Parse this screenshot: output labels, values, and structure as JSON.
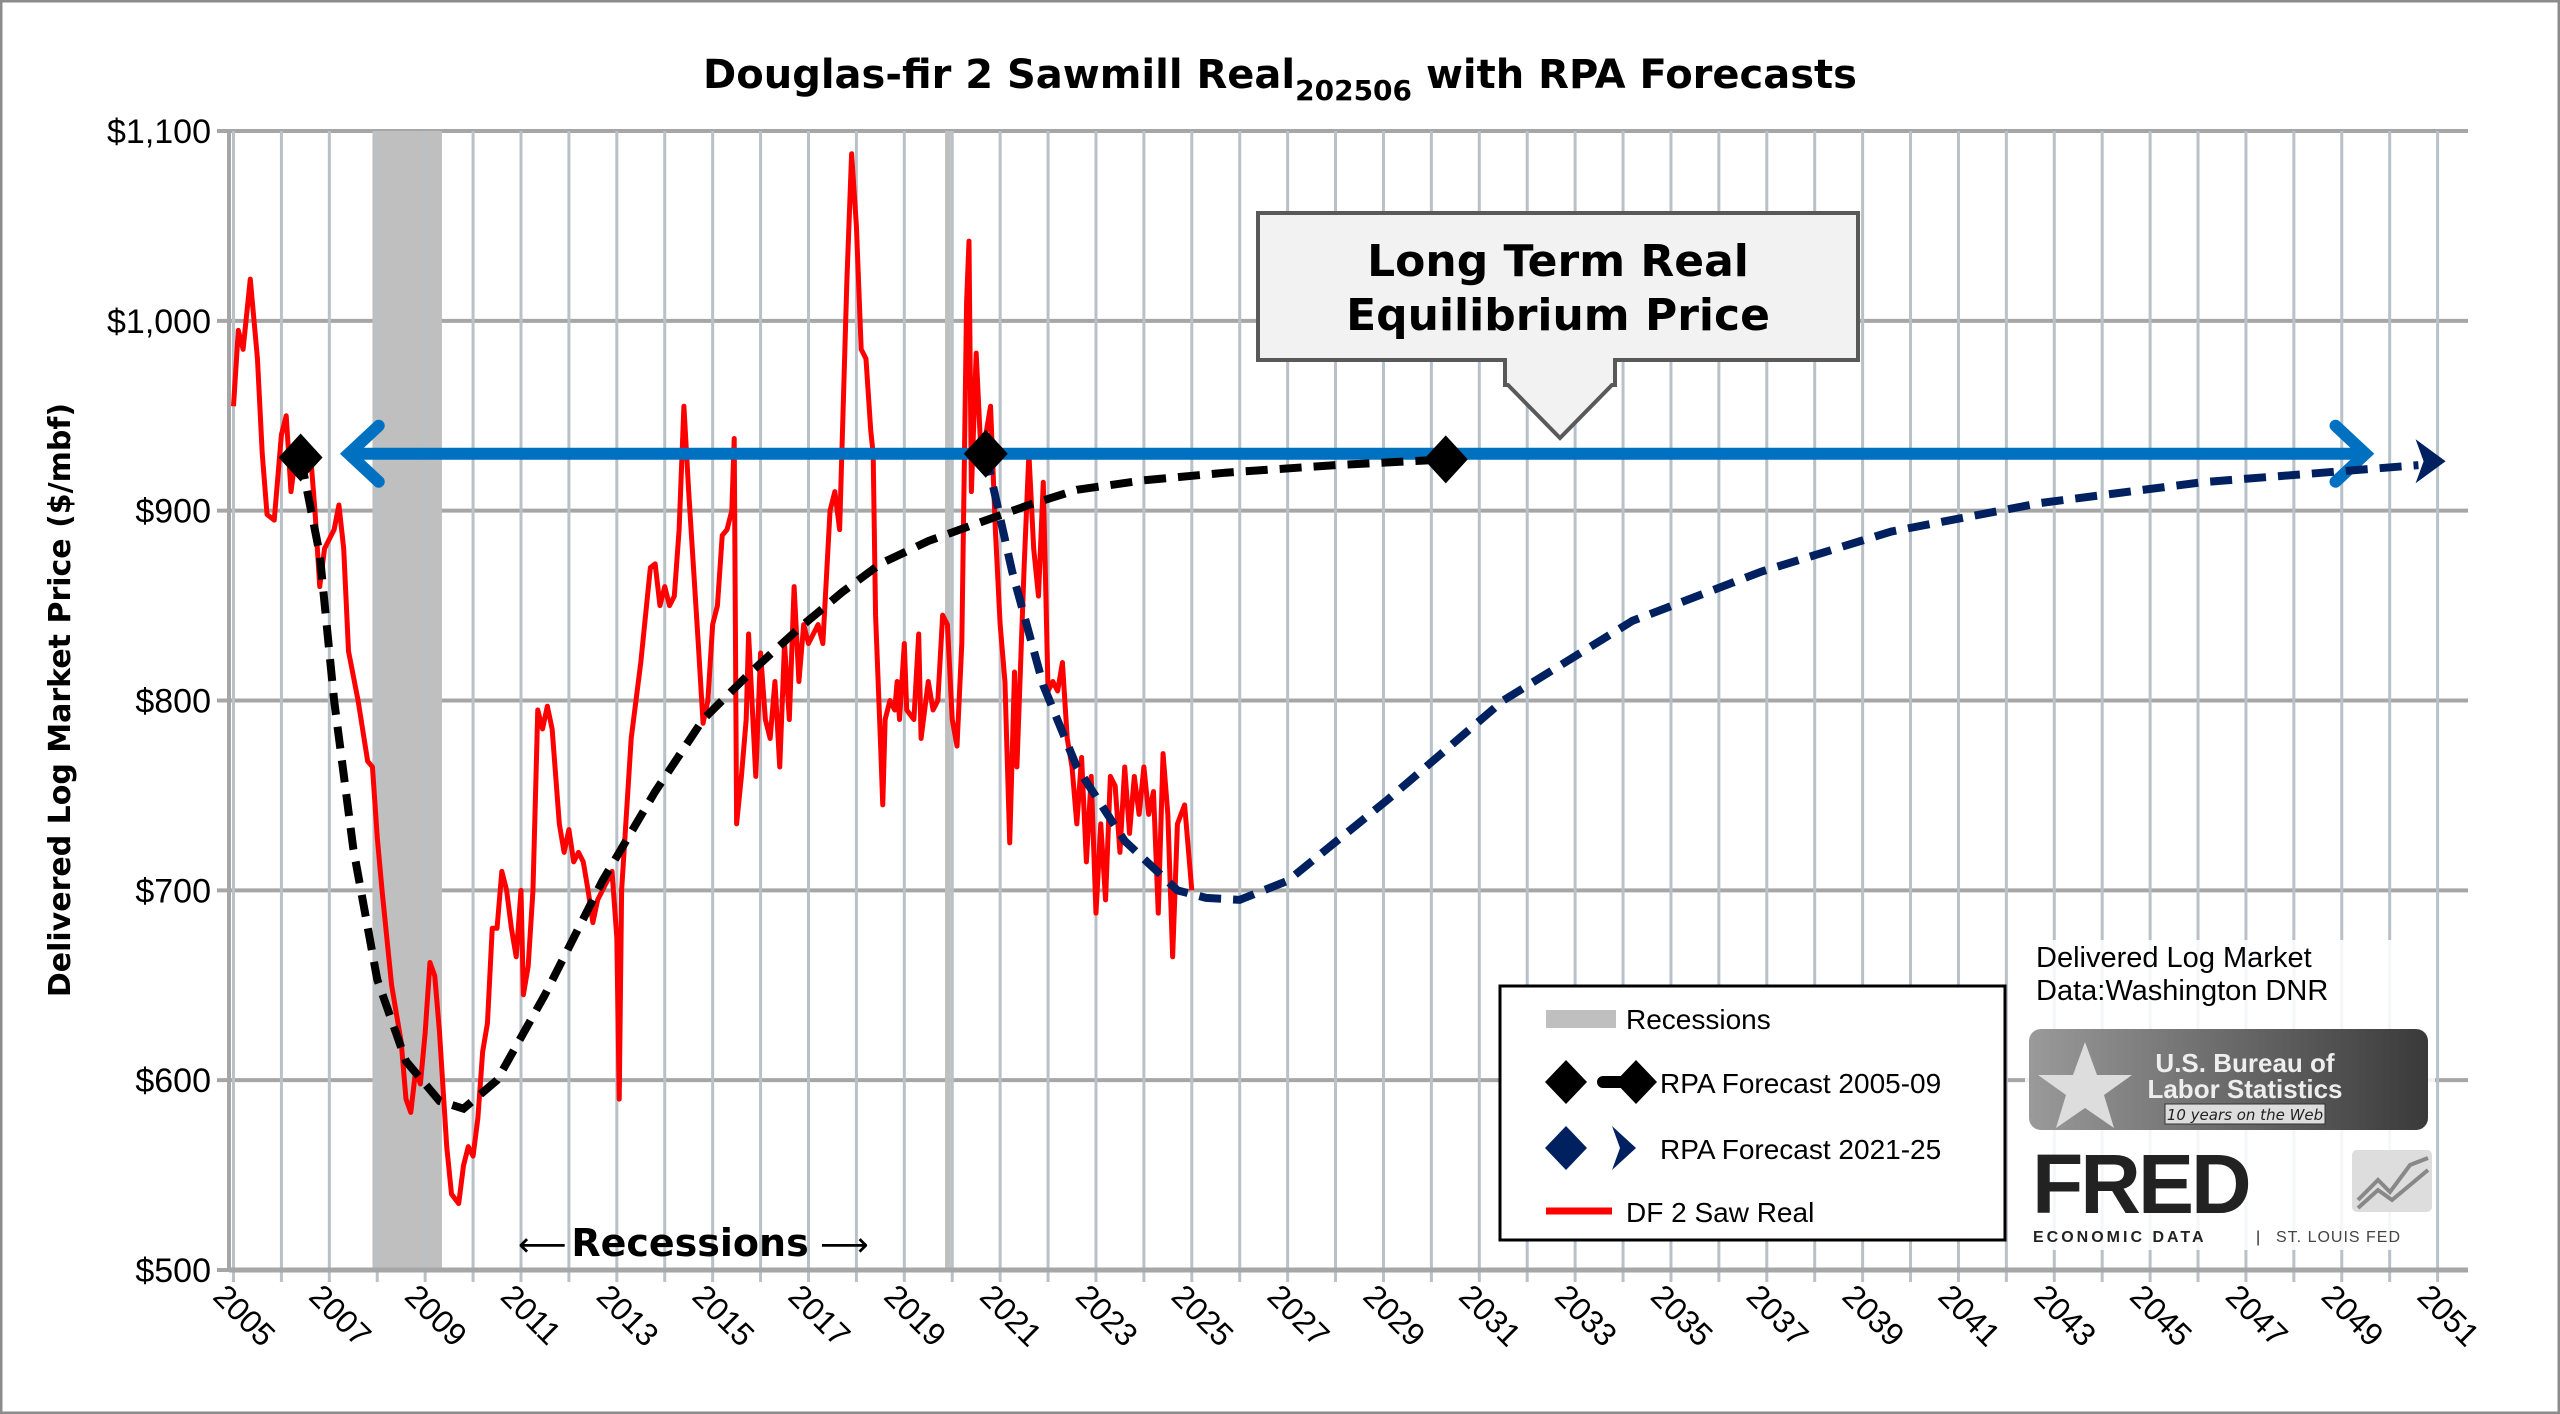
{
  "chart_data": {
    "type": "line",
    "title": "Douglas-fir 2 Sawmill Real",
    "title_subscript": "202506",
    "title_suffix": "with RPA Forecasts",
    "ylabel": "Delivered Log Market Price ($/mbf)",
    "xlabel": "",
    "ylim": [
      500,
      1100
    ],
    "xlim": [
      2005,
      2051
    ],
    "y_ticks": [
      500,
      600,
      700,
      800,
      900,
      1000,
      1100
    ],
    "y_tick_labels": [
      "$500",
      "$600",
      "$700",
      "$800",
      "$900",
      "$1,000",
      "$1,100"
    ],
    "x_tick_labels": [
      "2005",
      "2007",
      "2009",
      "2011",
      "2013",
      "2015",
      "2017",
      "2019",
      "2021",
      "2023",
      "2025",
      "2027",
      "2029",
      "2031",
      "2033",
      "2035",
      "2037",
      "2039",
      "2041",
      "2043",
      "2045",
      "2047",
      "2049",
      "2051"
    ],
    "grid": true,
    "legend_placement": "bottom-right",
    "recessions": [
      [
        2007.9,
        2009.35
      ],
      [
        2019.85,
        2019.97
      ]
    ],
    "recessions_annotation": "Recessions",
    "equilibrium": {
      "value": 930,
      "x_from": 2007.3,
      "x_to": 2049.6,
      "color": "#0070C0"
    },
    "callout": {
      "line1": "Long Term Real",
      "line2": "Equilibrium Price"
    },
    "series": [
      {
        "name": "DF 2 Saw Real",
        "color": "#FF0000",
        "style": "solid",
        "x": [
          2005.0,
          2005.1,
          2005.2,
          2005.35,
          2005.5,
          2005.6,
          2005.7,
          2005.85,
          2006.0,
          2006.1,
          2006.2,
          2006.3,
          2006.4,
          2006.5,
          2006.6,
          2006.7,
          2006.8,
          2006.9,
          2007.1,
          2007.2,
          2007.3,
          2007.4,
          2007.6,
          2007.8,
          2007.9,
          2008.0,
          2008.1,
          2008.3,
          2008.5,
          2008.6,
          2008.7,
          2008.8,
          2008.9,
          2009.0,
          2009.1,
          2009.2,
          2009.3,
          2009.45,
          2009.55,
          2009.7,
          2009.8,
          2009.9,
          2010.0,
          2010.1,
          2010.2,
          2010.3,
          2010.4,
          2010.5,
          2010.6,
          2010.7,
          2010.8,
          2010.9,
          2011.0,
          2011.05,
          2011.15,
          2011.25,
          2011.35,
          2011.45,
          2011.55,
          2011.65,
          2011.8,
          2011.9,
          2012.0,
          2012.1,
          2012.2,
          2012.3,
          2012.4,
          2012.5,
          2012.6,
          2012.8,
          2012.9,
          2013.0,
          2013.05,
          2013.1,
          2013.3,
          2013.5,
          2013.7,
          2013.8,
          2013.9,
          2014.0,
          2014.1,
          2014.2,
          2014.3,
          2014.4,
          2014.5,
          2014.6,
          2014.7,
          2014.8,
          2014.9,
          2015.0,
          2015.1,
          2015.2,
          2015.3,
          2015.4,
          2015.45,
          2015.5,
          2015.6,
          2015.7,
          2015.75,
          2015.8,
          2015.9,
          2016.0,
          2016.1,
          2016.2,
          2016.3,
          2016.4,
          2016.5,
          2016.6,
          2016.7,
          2016.8,
          2016.9,
          2017.0,
          2017.2,
          2017.3,
          2017.45,
          2017.55,
          2017.65,
          2017.8,
          2017.9,
          2018.0,
          2018.1,
          2018.2,
          2018.3,
          2018.35,
          2018.4,
          2018.5,
          2018.55,
          2018.6,
          2018.7,
          2018.8,
          2018.85,
          2018.9,
          2019.0,
          2019.05,
          2019.2,
          2019.3,
          2019.35,
          2019.5,
          2019.6,
          2019.7,
          2019.8,
          2019.9,
          2020.0,
          2020.1,
          2020.2,
          2020.3,
          2020.35,
          2020.4,
          2020.5,
          2020.6,
          2020.7,
          2020.8,
          2020.9,
          2021.0,
          2021.1,
          2021.2,
          2021.3,
          2021.35,
          2021.5,
          2021.6,
          2021.7,
          2021.8,
          2021.9,
          2022.0,
          2022.1,
          2022.2,
          2022.3,
          2022.4,
          2022.5,
          2022.6,
          2022.7,
          2022.8,
          2022.9,
          2023.0,
          2023.1,
          2023.2,
          2023.3,
          2023.4,
          2023.5,
          2023.6,
          2023.7,
          2023.8,
          2023.9,
          2024.0,
          2024.1,
          2024.2,
          2024.3,
          2024.4,
          2024.5,
          2024.6,
          2024.7,
          2024.85,
          2025.0
        ],
        "y": [
          955,
          995,
          985,
          1022,
          980,
          930,
          898,
          895,
          940,
          950,
          910,
          930,
          938,
          925,
          932,
          900,
          860,
          880,
          890,
          903,
          880,
          826,
          800,
          768,
          765,
          728,
          700,
          650,
          620,
          590,
          583,
          605,
          598,
          625,
          662,
          655,
          625,
          565,
          540,
          535,
          555,
          565,
          560,
          580,
          615,
          630,
          680,
          680,
          710,
          700,
          680,
          665,
          700,
          645,
          660,
          700,
          795,
          785,
          797,
          785,
          735,
          720,
          732,
          715,
          720,
          715,
          700,
          683,
          695,
          705,
          710,
          675,
          590,
          700,
          780,
          820,
          870,
          872,
          850,
          860,
          850,
          855,
          890,
          955,
          910,
          870,
          830,
          788,
          800,
          840,
          850,
          887,
          890,
          900,
          938,
          735,
          760,
          790,
          835,
          810,
          760,
          825,
          790,
          780,
          810,
          765,
          830,
          790,
          860,
          810,
          840,
          830,
          840,
          830,
          900,
          910,
          890,
          1020,
          1088,
          1050,
          985,
          980,
          942,
          930,
          845,
          780,
          745,
          790,
          800,
          795,
          810,
          790,
          830,
          795,
          790,
          835,
          780,
          810,
          795,
          800,
          845,
          840,
          790,
          776,
          830,
          1010,
          1042,
          910,
          983,
          930,
          940,
          955,
          890,
          840,
          810,
          725,
          815,
          765,
          870,
          930,
          880,
          855,
          915,
          805,
          810,
          805,
          820,
          780,
          765,
          735,
          770,
          715,
          760,
          688,
          735,
          695,
          760,
          755,
          720,
          765,
          730,
          760,
          740,
          765,
          740,
          752,
          688,
          772,
          740,
          665,
          735,
          745,
          700
        ]
      },
      {
        "name": "RPA Forecast 2005-09",
        "color": "#000000",
        "style": "dashed",
        "marker": "diamond",
        "x": [
          2006.4,
          2006.8,
          2007.1,
          2007.5,
          2008.0,
          2008.6,
          2009.3,
          2009.8,
          2010.5,
          2011.5,
          2012.7,
          2013.8,
          2014.8,
          2015.8,
          2016.8,
          2017.7,
          2018.5,
          2019.5,
          2020.6,
          2021.6,
          2022.6,
          2024.0,
          2025.7,
          2028.0,
          2030.3
        ],
        "y": [
          928,
          877,
          800,
          722,
          653,
          610,
          589,
          585,
          600,
          645,
          705,
          752,
          790,
          815,
          838,
          857,
          872,
          884,
          894,
          903,
          911,
          916,
          920,
          924,
          927
        ],
        "markers_x": [
          2006.4,
          2030.3
        ]
      },
      {
        "name": "RPA Forecast 2021-25",
        "color": "#002060",
        "style": "dashed",
        "marker": "diamond",
        "end_marker": "arrow",
        "x": [
          2020.7,
          2021.25,
          2021.9,
          2022.6,
          2023.6,
          2024.7,
          2025.3,
          2026.0,
          2027.0,
          2029.1,
          2031.5,
          2034.2,
          2036.9,
          2039.6,
          2042.7,
          2046.1,
          2050.6,
          2051.0
        ],
        "y": [
          930,
          868,
          808,
          765,
          726,
          700,
          696,
          695,
          705,
          748,
          800,
          842,
          868,
          889,
          904,
          915,
          924,
          926
        ],
        "markers_x": [
          2020.7
        ]
      }
    ],
    "legend": [
      {
        "label": "Recessions",
        "symbol": "recession-band"
      },
      {
        "label": "RPA Forecast 2005-09",
        "symbol": "black-diamond-dash"
      },
      {
        "label": "RPA Forecast 2021-25",
        "symbol": "navy-diamond-arrow"
      },
      {
        "label": "DF 2 Saw Real",
        "symbol": "red-line"
      }
    ]
  },
  "source": {
    "line1": "Delivered Log Market",
    "line2": "Data:Washington DNR",
    "bls_logo": {
      "line1": "U.S. Bureau of",
      "line2": "Labor Statistics",
      "ribbon": "10 years on the Web"
    },
    "fred_logo": {
      "word": "FRED",
      "tagline_left": "ECONOMIC DATA",
      "tagline_right": "ST. LOUIS FED"
    }
  },
  "colors": {
    "recession": "#BFBFBF",
    "grid_major": "#A6A6A6",
    "grid_minor": "#B8C0C8",
    "callout_fill": "#F2F2F2"
  }
}
